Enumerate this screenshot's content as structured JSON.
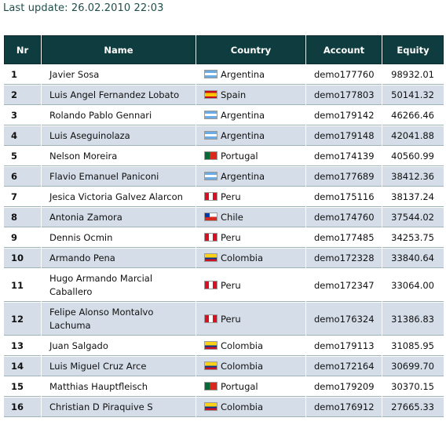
{
  "last_update": "Last update: 26.02.2010 22:03",
  "columns": {
    "nr": "Nr",
    "name": "Name",
    "country": "Country",
    "account": "Account",
    "equity": "Equity"
  },
  "flag_icons": {
    "Argentina": "argentina-flag-icon",
    "Spain": "spain-flag-icon",
    "Portugal": "portugal-flag-icon",
    "Peru": "peru-flag-icon",
    "Chile": "chile-flag-icon",
    "Colombia": "colombia-flag-icon"
  },
  "colors": {
    "header_bg": "#0f3d3f",
    "row_alt_bg": "#d4dde8",
    "title_text": "#1f4e4a"
  },
  "rows": [
    {
      "nr": "1",
      "name": "Javier Sosa",
      "country": "Argentina",
      "account": "demo177760",
      "equity": "98932.01"
    },
    {
      "nr": "2",
      "name": "Luis Angel Fernandez Lobato",
      "country": "Spain",
      "account": "demo177803",
      "equity": "50141.32"
    },
    {
      "nr": "3",
      "name": "Rolando Pablo Gennari",
      "country": "Argentina",
      "account": "demo179142",
      "equity": "46266.46"
    },
    {
      "nr": "4",
      "name": "Luis Aseguinolaza",
      "country": "Argentina",
      "account": "demo179148",
      "equity": "42041.88"
    },
    {
      "nr": "5",
      "name": "Nelson Moreira",
      "country": "Portugal",
      "account": "demo174139",
      "equity": "40560.99"
    },
    {
      "nr": "6",
      "name": "Flavio Emanuel Paniconi",
      "country": "Argentina",
      "account": "demo177689",
      "equity": "38412.36"
    },
    {
      "nr": "7",
      "name": "Jesica Victoria Galvez Alarcon",
      "country": "Peru",
      "account": "demo175116",
      "equity": "38137.24"
    },
    {
      "nr": "8",
      "name": "Antonia Zamora",
      "country": "Chile",
      "account": "demo174760",
      "equity": "37544.02"
    },
    {
      "nr": "9",
      "name": "Dennis Ocmin",
      "country": "Peru",
      "account": "demo177485",
      "equity": "34253.75"
    },
    {
      "nr": "10",
      "name": "Armando Pena",
      "country": "Colombia",
      "account": "demo172328",
      "equity": "33840.64"
    },
    {
      "nr": "11",
      "name": "Hugo Armando Marcial Caballero",
      "country": "Peru",
      "account": "demo172347",
      "equity": "33064.00"
    },
    {
      "nr": "12",
      "name": "Felipe Alonso Montalvo Lachuma",
      "country": "Peru",
      "account": "demo176324",
      "equity": "31386.83"
    },
    {
      "nr": "13",
      "name": "Juan Salgado",
      "country": "Colombia",
      "account": "demo179113",
      "equity": "31085.95"
    },
    {
      "nr": "14",
      "name": "Luis Miguel Cruz Arce",
      "country": "Colombia",
      "account": "demo172164",
      "equity": "30699.70"
    },
    {
      "nr": "15",
      "name": "Matthias Hauptfleisch",
      "country": "Portugal",
      "account": "demo179209",
      "equity": "30370.15"
    },
    {
      "nr": "16",
      "name": "Christian D Piraquive S",
      "country": "Colombia",
      "account": "demo176912",
      "equity": "27665.33"
    }
  ]
}
